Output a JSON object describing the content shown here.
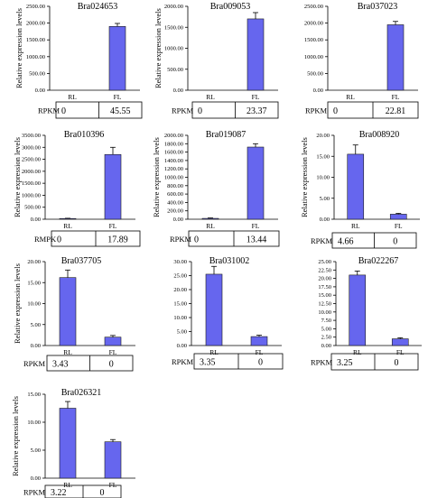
{
  "colors": {
    "bar_fill": "#6666ee",
    "bar_stroke": "#1a1a1a",
    "axis": "#000000",
    "box": "#000000"
  },
  "chart_data": [
    {
      "type": "bar",
      "title": "Bra024653",
      "ylabel": "Relative expression levels",
      "categories": [
        "RL",
        "FL"
      ],
      "values": [
        0,
        1900
      ],
      "errors": [
        0,
        90
      ],
      "ylim": [
        0,
        2500
      ],
      "yticks": [
        "0.00",
        "500.00",
        "1000.00",
        "1500.00",
        "2000.00",
        "2500.00"
      ],
      "rpkm_label": "RPKM",
      "rpkm_values": [
        "0",
        "45.55"
      ]
    },
    {
      "type": "bar",
      "title": "Bra009053",
      "ylabel": "Relative expression levels",
      "categories": [
        "RL",
        "FL"
      ],
      "values": [
        0,
        1700
      ],
      "errors": [
        0,
        150
      ],
      "ylim": [
        0,
        2000
      ],
      "yticks": [
        "0.00",
        "500.00",
        "1000.00",
        "1500.00",
        "2000.00"
      ],
      "rpkm_label": "RPKM",
      "rpkm_values": [
        "0",
        "23.37"
      ]
    },
    {
      "type": "bar",
      "title": "Bra037023",
      "ylabel": "",
      "categories": [
        "RL",
        "FL"
      ],
      "values": [
        0,
        1950
      ],
      "errors": [
        0,
        100
      ],
      "ylim": [
        0,
        2500
      ],
      "yticks": [
        "0.00",
        "500.00",
        "1000.00",
        "1500.00",
        "2000.00",
        "2500.00"
      ],
      "rpkm_label": "RPKM",
      "rpkm_values": [
        "0",
        "22.81"
      ]
    },
    {
      "type": "bar",
      "title": "Bra010396",
      "ylabel": "Relative expression levels",
      "categories": [
        "RL",
        "FL"
      ],
      "values": [
        30,
        2700
      ],
      "errors": [
        10,
        300
      ],
      "ylim": [
        0,
        3500
      ],
      "yticks": [
        "0.00",
        "500.00",
        "1000.00",
        "1500.00",
        "2000.00",
        "2500.00",
        "3000.00",
        "3500.00"
      ],
      "rpkm_label": "RMPK",
      "rpkm_values": [
        "0",
        "17.89"
      ]
    },
    {
      "type": "bar",
      "title": "Bra019087",
      "ylabel": "Relative expression levels",
      "categories": [
        "RL",
        "FL"
      ],
      "values": [
        20,
        1720
      ],
      "errors": [
        10,
        80
      ],
      "ylim": [
        0,
        2000
      ],
      "yticks": [
        "0.00",
        "200.00",
        "400.00",
        "600.00",
        "800.00",
        "1000.00",
        "1200.00",
        "1400.00",
        "1600.00",
        "1800.00",
        "2000.00"
      ],
      "rpkm_label": "RPKM",
      "rpkm_values": [
        "0",
        "13.44"
      ]
    },
    {
      "type": "bar",
      "title": "Bra008920",
      "ylabel": "Relative expression levels",
      "categories": [
        "RL",
        "FL"
      ],
      "values": [
        15.5,
        1.2
      ],
      "errors": [
        2.2,
        0.2
      ],
      "ylim": [
        0,
        20
      ],
      "yticks": [
        "0.00",
        "5.00",
        "10.00",
        "15.00",
        "20.00"
      ],
      "rpkm_label": "RPKM",
      "rpkm_values": [
        "4.66",
        "0"
      ]
    },
    {
      "type": "bar",
      "title": "Bra037705",
      "ylabel": "Relative expression levels",
      "categories": [
        "RL",
        "FL"
      ],
      "values": [
        16.2,
        2.0
      ],
      "errors": [
        1.8,
        0.4
      ],
      "ylim": [
        0,
        20
      ],
      "yticks": [
        "0.00",
        "5.00",
        "10.00",
        "15.00",
        "20.00"
      ],
      "rpkm_label": "RPKM",
      "rpkm_values": [
        "3.43",
        "0"
      ]
    },
    {
      "type": "bar",
      "title": "Bra031002",
      "ylabel": "",
      "categories": [
        "RL",
        "FL"
      ],
      "values": [
        25.5,
        3.2
      ],
      "errors": [
        2.8,
        0.5
      ],
      "ylim": [
        0,
        30
      ],
      "yticks": [
        "0.00",
        "5.00",
        "10.00",
        "15.00",
        "20.00",
        "25.00",
        "30.00"
      ],
      "rpkm_label": "RPKM",
      "rpkm_values": [
        "3.35",
        "0"
      ]
    },
    {
      "type": "bar",
      "title": "Bra022267",
      "ylabel": "",
      "categories": [
        "RL",
        "FL"
      ],
      "values": [
        21.0,
        2.0
      ],
      "errors": [
        1.2,
        0.3
      ],
      "ylim": [
        0,
        25
      ],
      "yticks": [
        "0.00",
        "2.50",
        "5.00",
        "7.50",
        "10.00",
        "12.50",
        "15.00",
        "17.50",
        "20.00",
        "22.50",
        "25.00"
      ],
      "rpkm_label": "RPKM",
      "rpkm_values": [
        "3.25",
        "0"
      ]
    },
    {
      "type": "bar",
      "title": "Bra026321",
      "ylabel": "Relative expression levels",
      "categories": [
        "RL",
        "FL"
      ],
      "values": [
        12.5,
        6.5
      ],
      "errors": [
        1.2,
        0.4
      ],
      "ylim": [
        0,
        15
      ],
      "yticks": [
        "0.00",
        "5.00",
        "10.00",
        "15.00"
      ],
      "rpkm_label": "RPKM",
      "rpkm_values": [
        "3.22",
        "0"
      ]
    }
  ]
}
